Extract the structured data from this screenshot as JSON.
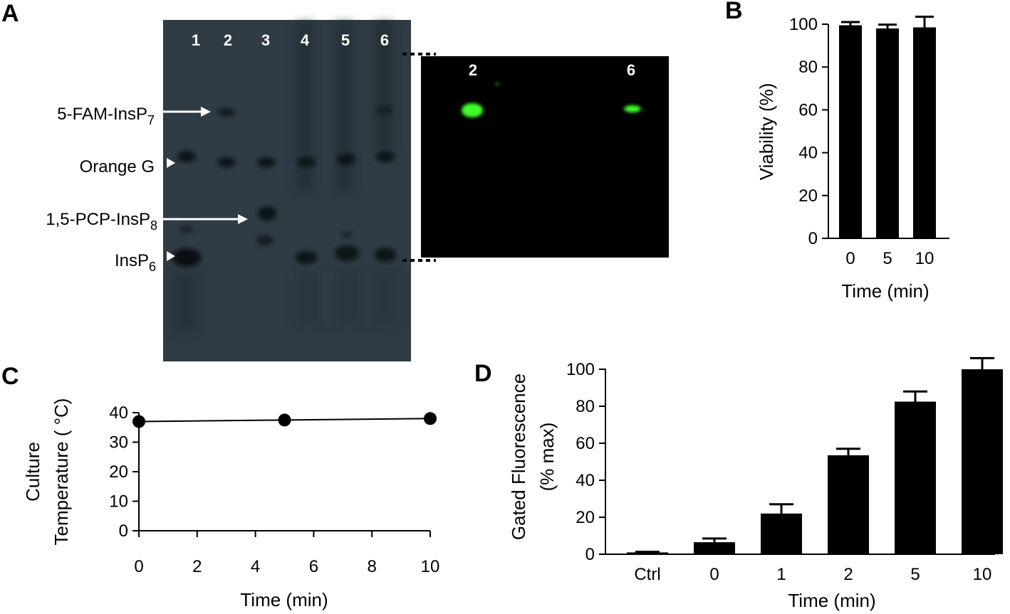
{
  "panels": {
    "A": {
      "label": "A",
      "gel_lanes": [
        "1",
        "2",
        "3",
        "4",
        "5",
        "6"
      ],
      "fluor_lanes": [
        "2",
        "6"
      ],
      "bands": [
        {
          "name": "5-FAM-InsP",
          "sub": "7"
        },
        {
          "name": "Orange G",
          "sub": ""
        },
        {
          "name": "1,5-PCP-InsP",
          "sub": "8"
        },
        {
          "name": "InsP",
          "sub": "6"
        }
      ],
      "colors": {
        "gel": "#2f3b45",
        "fluor_bg": "#000000",
        "fluor_band": "#3cff2a"
      }
    },
    "B": {
      "label": "B"
    },
    "C": {
      "label": "C"
    },
    "D": {
      "label": "D"
    }
  },
  "chart_data": [
    {
      "panel": "B",
      "type": "bar",
      "categories": [
        "0",
        "5",
        "10"
      ],
      "values": [
        99.5,
        98,
        98.5
      ],
      "errors": [
        1.5,
        1.8,
        5
      ],
      "xlabel": "Time (min)",
      "ylabel": "Viability (%)",
      "ylim": [
        0,
        100
      ],
      "yticks": [
        0,
        20,
        40,
        60,
        80,
        100
      ]
    },
    {
      "panel": "C",
      "type": "line",
      "x": [
        0,
        5,
        10
      ],
      "y": [
        37,
        37.5,
        38
      ],
      "xlabel": "Time (min)",
      "ylabel_lines": [
        "Culture",
        "Temperature ( °C)"
      ],
      "xlim": [
        0,
        10
      ],
      "ylim": [
        0,
        40
      ],
      "xticks": [
        0,
        2,
        4,
        6,
        8,
        10
      ],
      "yticks": [
        0,
        10,
        20,
        30,
        40
      ]
    },
    {
      "panel": "D",
      "type": "bar",
      "categories": [
        "Ctrl",
        "0",
        "1",
        "2",
        "5",
        "10"
      ],
      "values": [
        1,
        6.5,
        22,
        53.5,
        82.5,
        100
      ],
      "errors": [
        0.3,
        2,
        5,
        3.5,
        5.5,
        6
      ],
      "xlabel": "Time (min)",
      "ylabel_lines": [
        "Gated Fluorescence",
        "(% max)"
      ],
      "ylim": [
        0,
        100
      ],
      "yticks": [
        0,
        20,
        40,
        60,
        80,
        100
      ]
    }
  ]
}
